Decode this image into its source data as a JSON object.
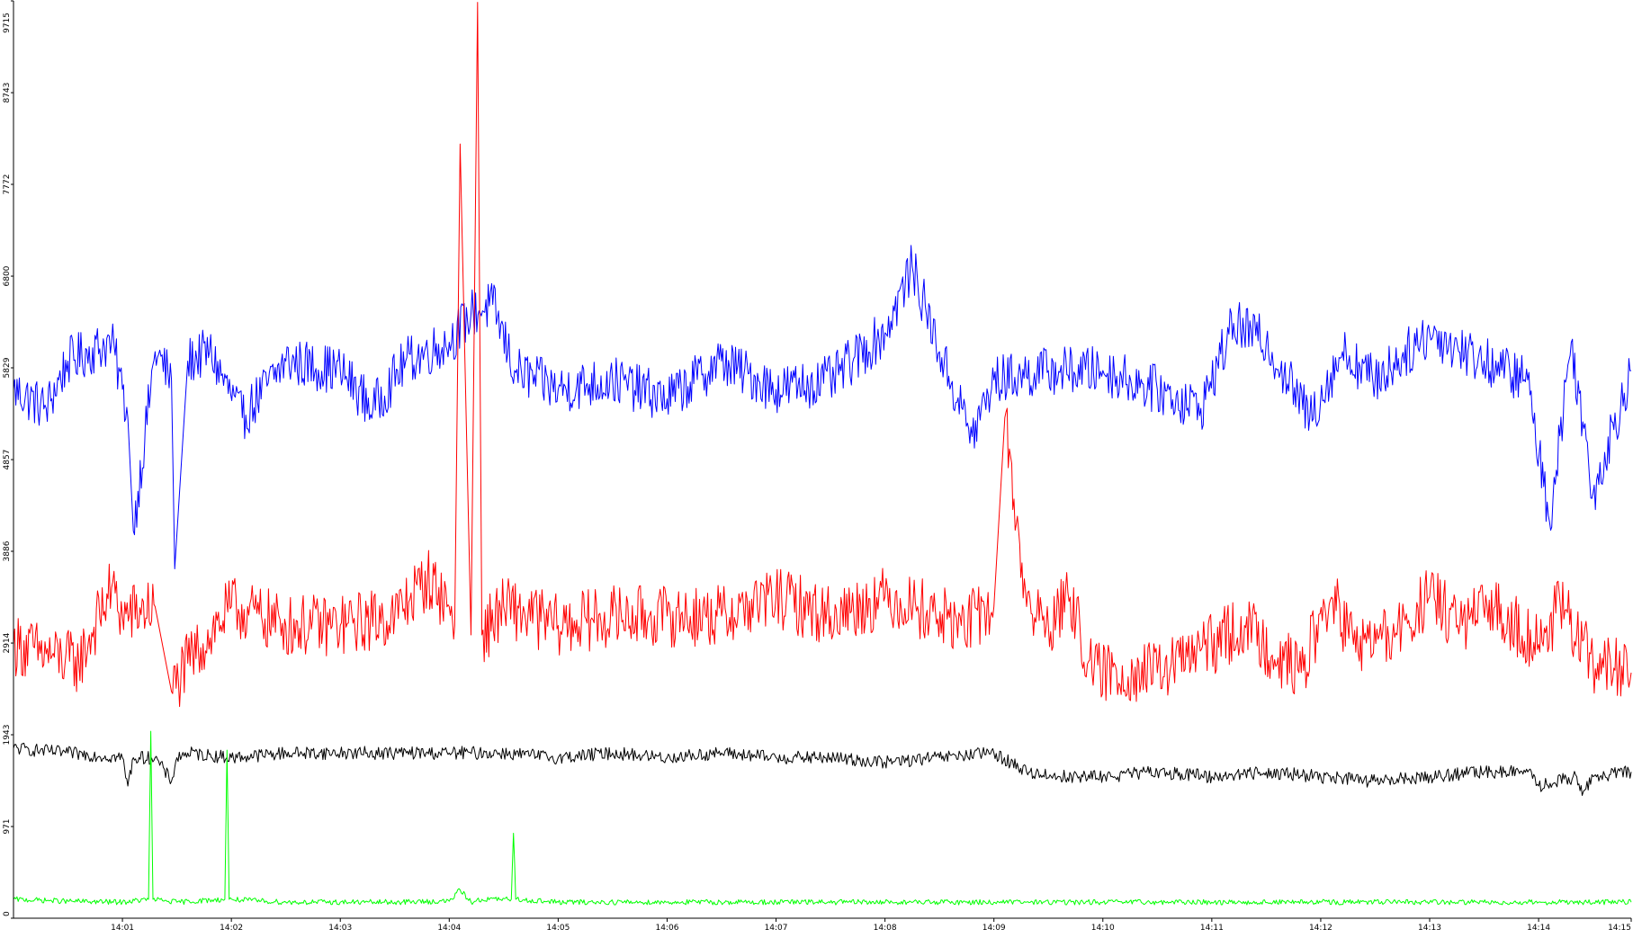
{
  "chart_data": {
    "type": "line",
    "title": "",
    "xlabel": "",
    "ylabel": "",
    "ylim": [
      0,
      9715
    ],
    "xlim_minutes": [
      0.0,
      14.85
    ],
    "y_ticks": [
      0,
      971,
      1943,
      2914,
      3886,
      4857,
      5829,
      6800,
      7772,
      8743,
      9715
    ],
    "x_ticks": [
      {
        "label": "14:01",
        "t": 1.0
      },
      {
        "label": "14:02",
        "t": 2.0
      },
      {
        "label": "14:03",
        "t": 3.0
      },
      {
        "label": "14:04",
        "t": 4.0
      },
      {
        "label": "14:05",
        "t": 5.0
      },
      {
        "label": "14:06",
        "t": 6.0
      },
      {
        "label": "14:07",
        "t": 7.0
      },
      {
        "label": "14:08",
        "t": 8.0
      },
      {
        "label": "14:09",
        "t": 9.0
      },
      {
        "label": "14:10",
        "t": 10.0
      },
      {
        "label": "14:11",
        "t": 11.0
      },
      {
        "label": "14:12",
        "t": 12.0
      },
      {
        "label": "14:13",
        "t": 13.0
      },
      {
        "label": "14:14",
        "t": 14.0
      },
      {
        "label": "14:15",
        "t": 14.85
      }
    ],
    "grid": false,
    "legend": "none",
    "series": [
      {
        "color": "#0000ff",
        "x": [
          0,
          0.3,
          0.5,
          0.9,
          1.0,
          1.05,
          1.1,
          1.3,
          1.45,
          1.48,
          1.6,
          1.8,
          2.1,
          2.5,
          3.0,
          3.3,
          3.6,
          4.0,
          4.2,
          4.4,
          4.6,
          5.0,
          5.5,
          6.0,
          6.5,
          7.0,
          7.5,
          8.0,
          8.25,
          8.5,
          8.8,
          9.0,
          9.5,
          10.0,
          10.5,
          10.9,
          11.2,
          11.5,
          11.9,
          12.2,
          12.5,
          13.0,
          13.5,
          13.9,
          14.1,
          14.3,
          14.5,
          14.85
        ],
        "y": [
          5600,
          5400,
          5900,
          6100,
          5600,
          5300,
          4100,
          6000,
          5700,
          3700,
          5900,
          6000,
          5300,
          5900,
          5800,
          5400,
          5900,
          6100,
          6400,
          6500,
          5800,
          5600,
          5700,
          5500,
          5900,
          5600,
          5700,
          6200,
          6900,
          6000,
          5100,
          5700,
          5800,
          5800,
          5600,
          5400,
          6300,
          6100,
          5300,
          6000,
          5700,
          6200,
          5900,
          5700,
          4200,
          6100,
          4500,
          5800
        ]
      },
      {
        "color": "#ff0000",
        "x": [
          0,
          0.3,
          0.6,
          0.9,
          1.0,
          1.3,
          1.45,
          1.6,
          2.0,
          2.5,
          3.0,
          3.5,
          3.8,
          4.0,
          4.05,
          4.1,
          4.2,
          4.26,
          4.3,
          4.5,
          5.0,
          5.5,
          6.0,
          6.5,
          7.0,
          7.5,
          8.0,
          8.3,
          8.7,
          9.0,
          9.1,
          9.3,
          9.5,
          9.7,
          9.9,
          10.5,
          11.0,
          11.3,
          11.8,
          12.1,
          12.3,
          12.7,
          13.0,
          13.3,
          13.6,
          14.0,
          14.2,
          14.5,
          14.85
        ],
        "y": [
          2900,
          2800,
          2700,
          3500,
          3200,
          3300,
          2400,
          2700,
          3300,
          3100,
          3100,
          3200,
          3600,
          3300,
          3100,
          8200,
          3000,
          9700,
          3000,
          3300,
          3100,
          3200,
          3200,
          3200,
          3400,
          3200,
          3400,
          3300,
          3100,
          3300,
          5300,
          3300,
          3100,
          3400,
          2600,
          2600,
          2900,
          3100,
          2600,
          3400,
          2900,
          3000,
          3400,
          3100,
          3300,
          2900,
          3300,
          2700,
          2600
        ]
      },
      {
        "color": "#000000",
        "x": [
          0,
          0.5,
          1.0,
          1.05,
          1.1,
          1.3,
          1.45,
          1.5,
          1.6,
          2.0,
          2.5,
          3.0,
          3.5,
          4.0,
          4.5,
          5.0,
          5.5,
          6.0,
          6.5,
          7.0,
          7.5,
          8.0,
          8.5,
          9.0,
          9.3,
          9.6,
          10.0,
          10.5,
          11.0,
          11.5,
          12.0,
          12.5,
          13.0,
          13.5,
          13.9,
          14.0,
          14.35,
          14.4,
          14.5,
          14.85
        ],
        "y": [
          1800,
          1750,
          1700,
          1400,
          1700,
          1700,
          1450,
          1700,
          1750,
          1700,
          1750,
          1750,
          1750,
          1750,
          1750,
          1700,
          1750,
          1700,
          1750,
          1700,
          1700,
          1650,
          1700,
          1750,
          1550,
          1500,
          1500,
          1550,
          1500,
          1550,
          1500,
          1450,
          1500,
          1550,
          1550,
          1400,
          1500,
          1300,
          1500,
          1550
        ]
      },
      {
        "color": "#00ff00",
        "x": [
          0,
          0.5,
          1.0,
          1.24,
          1.26,
          1.28,
          1.5,
          1.94,
          1.96,
          1.98,
          2.5,
          3.0,
          3.5,
          4.0,
          4.1,
          4.2,
          4.3,
          4.57,
          4.59,
          4.61,
          5.0,
          6.0,
          7.0,
          8.0,
          9.0,
          10.0,
          11.0,
          12.0,
          13.0,
          14.0,
          14.85
        ],
        "y": [
          200,
          180,
          170,
          200,
          1980,
          200,
          170,
          200,
          1780,
          200,
          170,
          170,
          170,
          180,
          300,
          170,
          200,
          200,
          900,
          200,
          170,
          170,
          170,
          170,
          170,
          170,
          170,
          170,
          170,
          170,
          170
        ]
      }
    ]
  }
}
